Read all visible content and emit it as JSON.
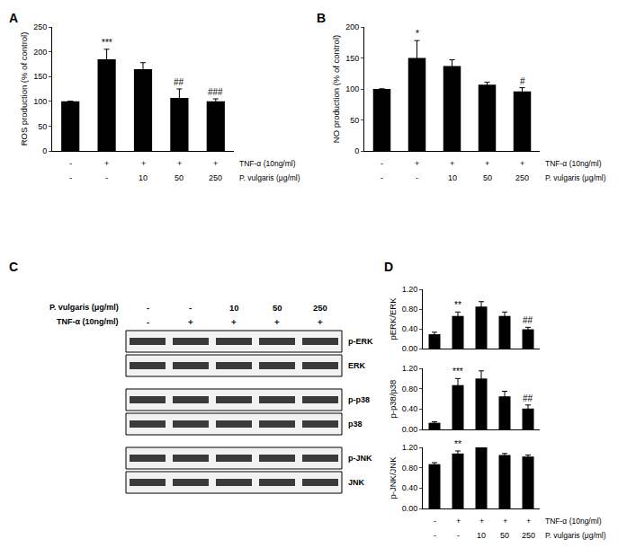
{
  "chart_data": [
    {
      "type": "bar",
      "title": "A",
      "ylabel": "ROS production (% of control)",
      "categories": [
        null,
        null,
        null,
        null,
        null
      ],
      "values": [
        100,
        185,
        165,
        107,
        100
      ],
      "errors": [
        0,
        20,
        13,
        18,
        5
      ],
      "significance": [
        null,
        "***",
        null,
        "##",
        "###"
      ],
      "color": "#000000",
      "ylim": [
        0,
        250
      ],
      "yticks": [
        0,
        50,
        100,
        150,
        200,
        250
      ],
      "grid": false,
      "tick_labels": "y",
      "treatments": [
        {
          "label": "TNF-α (10ng/ml)",
          "values": [
            "-",
            "+",
            "+",
            "+",
            "+"
          ]
        },
        {
          "label": "P. vulgaris (μg/ml)",
          "values": [
            "-",
            "-",
            "10",
            "50",
            "250"
          ]
        }
      ]
    },
    {
      "type": "bar",
      "title": "B",
      "ylabel": "NO production (% of control)",
      "categories": [
        null,
        null,
        null,
        null,
        null
      ],
      "values": [
        100,
        150,
        137,
        107,
        96
      ],
      "errors": [
        0,
        28,
        10,
        4,
        6
      ],
      "significance": [
        null,
        "*",
        null,
        null,
        "#"
      ],
      "color": "#000000",
      "ylim": [
        0,
        200
      ],
      "yticks": [
        0,
        50,
        100,
        150,
        200
      ],
      "grid": false,
      "tick_labels": "y",
      "treatments": [
        {
          "label": "TNF-α (10ng/ml)",
          "values": [
            "-",
            "+",
            "+",
            "+",
            "+"
          ]
        },
        {
          "label": "P. vulgaris (μg/ml)",
          "values": [
            "-",
            "-",
            "10",
            "50",
            "250"
          ]
        }
      ]
    },
    {
      "type": "bar",
      "title": "D",
      "ylabel": "pERK/ERK",
      "categories": [
        null,
        null,
        null,
        null,
        null
      ],
      "values": [
        0.29,
        0.66,
        0.85,
        0.66,
        0.39
      ],
      "errors": [
        0.04,
        0.08,
        0.1,
        0.08,
        0.04
      ],
      "significance": [
        null,
        "**",
        null,
        null,
        "##"
      ],
      "color": "#000000",
      "ylim": [
        0,
        1.2
      ],
      "yticks": [
        {
          "value": 0,
          "label": "0.00"
        },
        {
          "value": 0.4,
          "label": "0.40"
        },
        {
          "value": 0.8,
          "label": "0.80"
        },
        {
          "value": 1.2,
          "label": "1.20"
        }
      ],
      "grid": false,
      "tick_labels": "y"
    },
    {
      "type": "bar",
      "ylabel": "p-p38/p38",
      "categories": [
        null,
        null,
        null,
        null,
        null
      ],
      "values": [
        0.13,
        0.87,
        1.0,
        0.65,
        0.41
      ],
      "errors": [
        0.02,
        0.13,
        0.15,
        0.1,
        0.07
      ],
      "significance": [
        null,
        "***",
        null,
        null,
        "##"
      ],
      "color": "#000000",
      "ylim": [
        0,
        1.2
      ],
      "yticks": [
        {
          "value": 0,
          "label": "0.00"
        },
        {
          "value": 0.4,
          "label": "0.40"
        },
        {
          "value": 0.8,
          "label": "0.80"
        },
        {
          "value": 1.2,
          "label": "1.20"
        }
      ],
      "grid": false,
      "tick_labels": "y"
    },
    {
      "type": "bar",
      "ylabel": "p-JNK/JNK",
      "categories": [
        null,
        null,
        null,
        null,
        null
      ],
      "values": [
        0.87,
        1.08,
        1.2,
        1.05,
        1.02
      ],
      "errors": [
        0.03,
        0.05,
        0,
        0.03,
        0.03
      ],
      "significance": [
        null,
        "**",
        null,
        null,
        null
      ],
      "color": "#000000",
      "ylim": [
        0,
        1.2
      ],
      "yticks": [
        {
          "value": 0,
          "label": "0.00"
        },
        {
          "value": 0.4,
          "label": "0.40"
        },
        {
          "value": 0.8,
          "label": "0.80"
        },
        {
          "value": 1.2,
          "label": "1.20"
        }
      ],
      "grid": false,
      "tick_labels": "y",
      "treatments": [
        {
          "label": "TNF-α (10ng/ml)",
          "values": [
            "-",
            "+",
            "+",
            "+",
            "+"
          ]
        },
        {
          "label": "P. vulgaris (μg/ml)",
          "values": [
            "-",
            "-",
            "10",
            "50",
            "250"
          ]
        }
      ]
    }
  ],
  "blot": {
    "title": "C",
    "treatments": [
      {
        "label": "P. vulgaris (μg/ml)",
        "values": [
          "-",
          "-",
          "10",
          "50",
          "250"
        ]
      },
      {
        "label": "TNF-α (10ng/ml)",
        "values": [
          "-",
          "+",
          "+",
          "+",
          "+"
        ]
      }
    ],
    "groups": [
      [
        "p-ERK",
        "ERK"
      ],
      [
        "p-p38",
        "p38"
      ],
      [
        "p-JNK",
        "JNK"
      ]
    ]
  }
}
